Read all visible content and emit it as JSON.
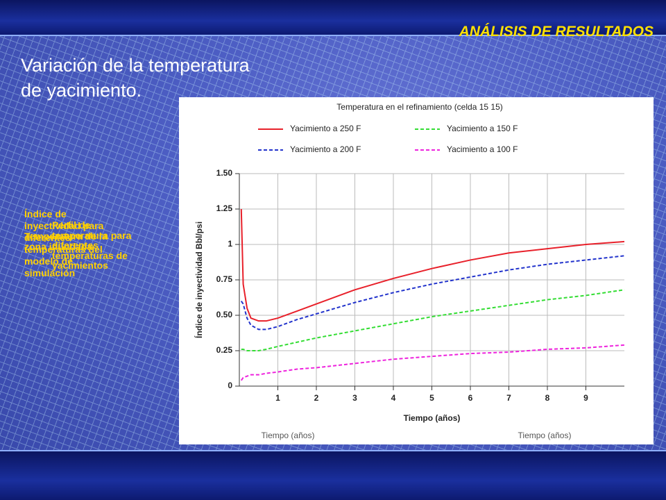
{
  "header": {
    "section": "ANÁLISIS DE RESULTADOS",
    "heading": [
      "Variación de la temperatura",
      "de yacimiento."
    ]
  },
  "notes": [
    [
      "Índice de",
      "inyectividad para",
      "diferentes",
      "temperaturas del",
      "modelo de",
      "simulación"
    ],
    [
      "Temperatura de la",
      "zona inundada"
    ],
    [
      "Perfil de",
      "temperatura para",
      "diferentes",
      "temperaturas de",
      "yacimientos"
    ]
  ],
  "chart_data": {
    "type": "line",
    "title": "Temperatura en el refinamiento (celda 15 15)",
    "x_label": "Tiempo (años)",
    "y_label": "Índice de inyectividad Bbl/psi",
    "faded_labels": [
      "Tiempo (años)",
      "Tiempo (años)"
    ],
    "x": [
      0.05,
      0.1,
      0.2,
      0.3,
      0.5,
      0.7,
      1,
      1.5,
      2,
      3,
      4,
      5,
      6,
      7,
      8,
      9,
      10
    ],
    "series": [
      {
        "name": "Yacimiento a 250 F",
        "color": "#e8202a",
        "style": "solid",
        "values": [
          1.25,
          0.72,
          0.55,
          0.48,
          0.46,
          0.46,
          0.48,
          0.53,
          0.58,
          0.68,
          0.76,
          0.83,
          0.89,
          0.94,
          0.97,
          1.0,
          1.02
        ]
      },
      {
        "name": "Yacimiento a 200 F",
        "color": "#2233cc",
        "style": "dashed",
        "values": [
          0.6,
          0.58,
          0.48,
          0.43,
          0.4,
          0.4,
          0.42,
          0.47,
          0.51,
          0.59,
          0.66,
          0.72,
          0.77,
          0.82,
          0.86,
          0.89,
          0.92
        ]
      },
      {
        "name": "Yacimiento a 150 F",
        "color": "#33dd33",
        "style": "dashed",
        "values": [
          0.26,
          0.26,
          0.25,
          0.25,
          0.25,
          0.26,
          0.28,
          0.31,
          0.34,
          0.39,
          0.44,
          0.49,
          0.53,
          0.57,
          0.61,
          0.64,
          0.68
        ]
      },
      {
        "name": "Yacimiento a 100 F",
        "color": "#ee22dd",
        "style": "dashed",
        "values": [
          0.04,
          0.06,
          0.07,
          0.08,
          0.08,
          0.09,
          0.1,
          0.12,
          0.13,
          0.16,
          0.19,
          0.21,
          0.23,
          0.24,
          0.26,
          0.27,
          0.29
        ]
      }
    ],
    "xlim": [
      0,
      10
    ],
    "xticks": [
      1,
      2,
      3,
      4,
      5,
      6,
      7,
      8,
      9
    ],
    "ylim": [
      0,
      1.5
    ],
    "yticks": [
      0,
      0.25,
      {
        "value": 0.5,
        "label": "0.50"
      },
      0.75,
      1,
      1.25,
      {
        "value": 1.5,
        "label": "1.50"
      }
    ],
    "grid": true
  }
}
